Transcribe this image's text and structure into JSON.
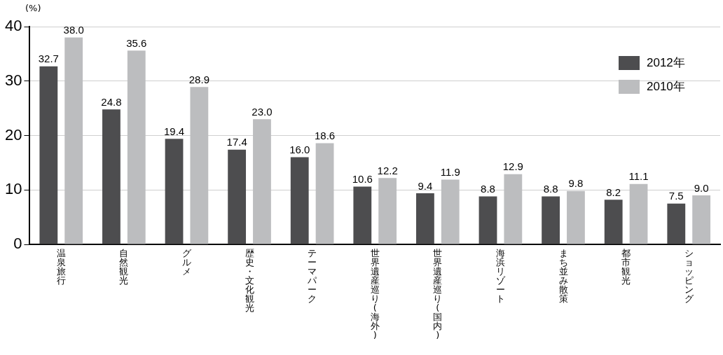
{
  "chart_data": {
    "type": "bar",
    "ylabel": "(%)",
    "categories": [
      "温泉旅行",
      "自然観光",
      "グルメ",
      "歴史・文化観光",
      "テーマパーク",
      "世界遺産巡り(海外)",
      "世界遺産巡り(国内)",
      "海浜リゾート",
      "まち並み散策",
      "都市観光",
      "ショッピング"
    ],
    "series": [
      {
        "name": "2012年",
        "color": "#4d4d4f",
        "values": [
          32.7,
          24.8,
          19.4,
          17.4,
          16.0,
          10.6,
          9.4,
          8.8,
          8.8,
          8.2,
          7.5
        ],
        "value_labels": [
          "32.7",
          "24.8",
          "19.4",
          "17.4",
          "16.0",
          "10.6",
          "9.4",
          "8.8",
          "8.8",
          "8.2",
          "7.5"
        ]
      },
      {
        "name": "2010年",
        "color": "#bcbdbf",
        "values": [
          38.0,
          35.6,
          28.9,
          23.0,
          18.6,
          12.2,
          11.9,
          12.9,
          9.8,
          11.1,
          9.0
        ],
        "value_labels": [
          "38.0",
          "35.6",
          "28.9",
          "23.0",
          "18.6",
          "12.2",
          "11.9",
          "12.9",
          "9.8",
          "11.1",
          "9.0"
        ]
      }
    ],
    "ylim": [
      0,
      40
    ],
    "yticks": [
      0,
      10,
      20,
      30,
      40
    ],
    "grid": "y",
    "legend": "top right",
    "data_labels": true
  }
}
